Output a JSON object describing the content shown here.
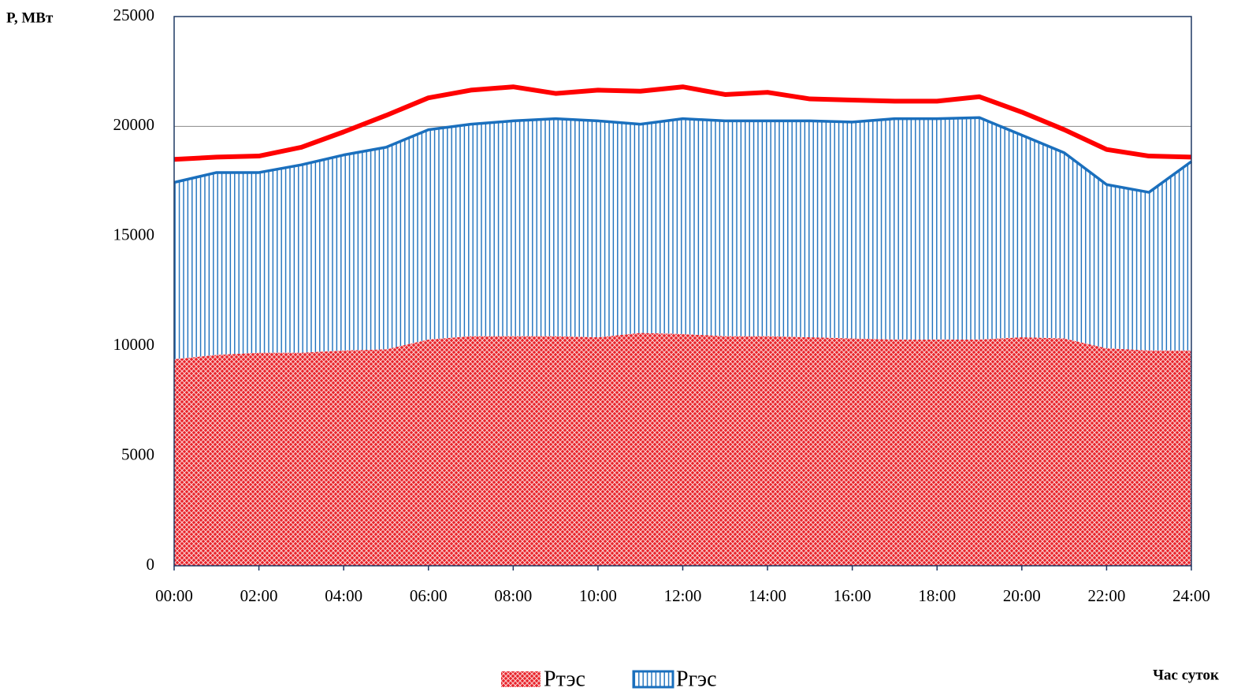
{
  "chart_data": {
    "type": "area",
    "y_label": "P, MВт",
    "x_label": "Час суток",
    "x": [
      0,
      1,
      2,
      3,
      4,
      5,
      6,
      7,
      8,
      9,
      10,
      11,
      12,
      13,
      14,
      15,
      16,
      17,
      18,
      19,
      20,
      21,
      22,
      23,
      24
    ],
    "xlim": [
      0,
      24
    ],
    "xticks": [
      {
        "value": 0,
        "label": "00:00"
      },
      {
        "value": 2,
        "label": "02:00"
      },
      {
        "value": 4,
        "label": "04:00"
      },
      {
        "value": 6,
        "label": "06:00"
      },
      {
        "value": 8,
        "label": "08:00"
      },
      {
        "value": 10,
        "label": "10:00"
      },
      {
        "value": 12,
        "label": "12:00"
      },
      {
        "value": 14,
        "label": "14:00"
      },
      {
        "value": 16,
        "label": "16:00"
      },
      {
        "value": 18,
        "label": "18:00"
      },
      {
        "value": 20,
        "label": "20:00"
      },
      {
        "value": 22,
        "label": "22:00"
      },
      {
        "value": 24,
        "label": "24:00"
      }
    ],
    "ylim": [
      0,
      25000
    ],
    "yticks": [
      0,
      5000,
      10000,
      15000,
      20000,
      25000
    ],
    "grid": true,
    "stacked": true,
    "series": [
      {
        "name": "Pтэс",
        "color": "#e8232a",
        "values": [
          9400,
          9600,
          9700,
          9700,
          9800,
          9850,
          10300,
          10450,
          10450,
          10450,
          10400,
          10600,
          10550,
          10450,
          10450,
          10400,
          10350,
          10300,
          10300,
          10300,
          10400,
          10350,
          9900,
          9800,
          9800
        ]
      },
      {
        "name": "Pгэс",
        "color": "#1a6fbd",
        "values": [
          8050,
          8300,
          8200,
          8550,
          8900,
          9200,
          9550,
          9650,
          9800,
          9900,
          9850,
          9500,
          9800,
          9800,
          9800,
          9850,
          9850,
          10050,
          10050,
          10100,
          9200,
          8450,
          7450,
          7200,
          8600
        ]
      },
      {
        "type": "line",
        "color": "#ff0000",
        "values": [
          18500,
          18600,
          18650,
          19050,
          19750,
          20500,
          21300,
          21650,
          21800,
          21500,
          21650,
          21600,
          21800,
          21450,
          21550,
          21250,
          21200,
          21150,
          21150,
          21350,
          20650,
          19850,
          18950,
          18650,
          18600
        ]
      }
    ]
  }
}
